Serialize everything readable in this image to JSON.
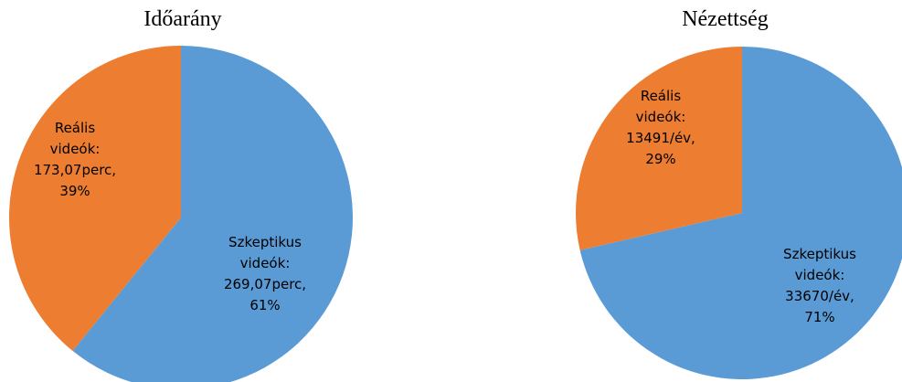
{
  "chart_data": [
    {
      "type": "pie",
      "title": "Időarány",
      "slices": [
        {
          "name": "Szkeptikus videók",
          "value": 269.07,
          "percent": 61,
          "label_lines": [
            "Szkeptikus",
            "videók:",
            "269,07perc,",
            "61%"
          ],
          "color": "#5B9BD5"
        },
        {
          "name": "Reális videók",
          "value": 173.07,
          "percent": 39,
          "label_lines": [
            "Reális",
            "videók:",
            "173,07perc,",
            "39%"
          ],
          "color": "#ED7D31"
        }
      ]
    },
    {
      "type": "pie",
      "title": "Nézettség",
      "slices": [
        {
          "name": "Szkeptikus videók",
          "value": 33670,
          "percent": 71,
          "label_lines": [
            "Szkeptikus",
            "videók:",
            "33670/év,",
            "71%"
          ],
          "color": "#5B9BD5"
        },
        {
          "name": "Reális videók",
          "value": 13491,
          "percent": 29,
          "label_lines": [
            "Reális",
            "videók:",
            "13491/év,",
            "29%"
          ],
          "color": "#ED7D31"
        }
      ]
    }
  ]
}
